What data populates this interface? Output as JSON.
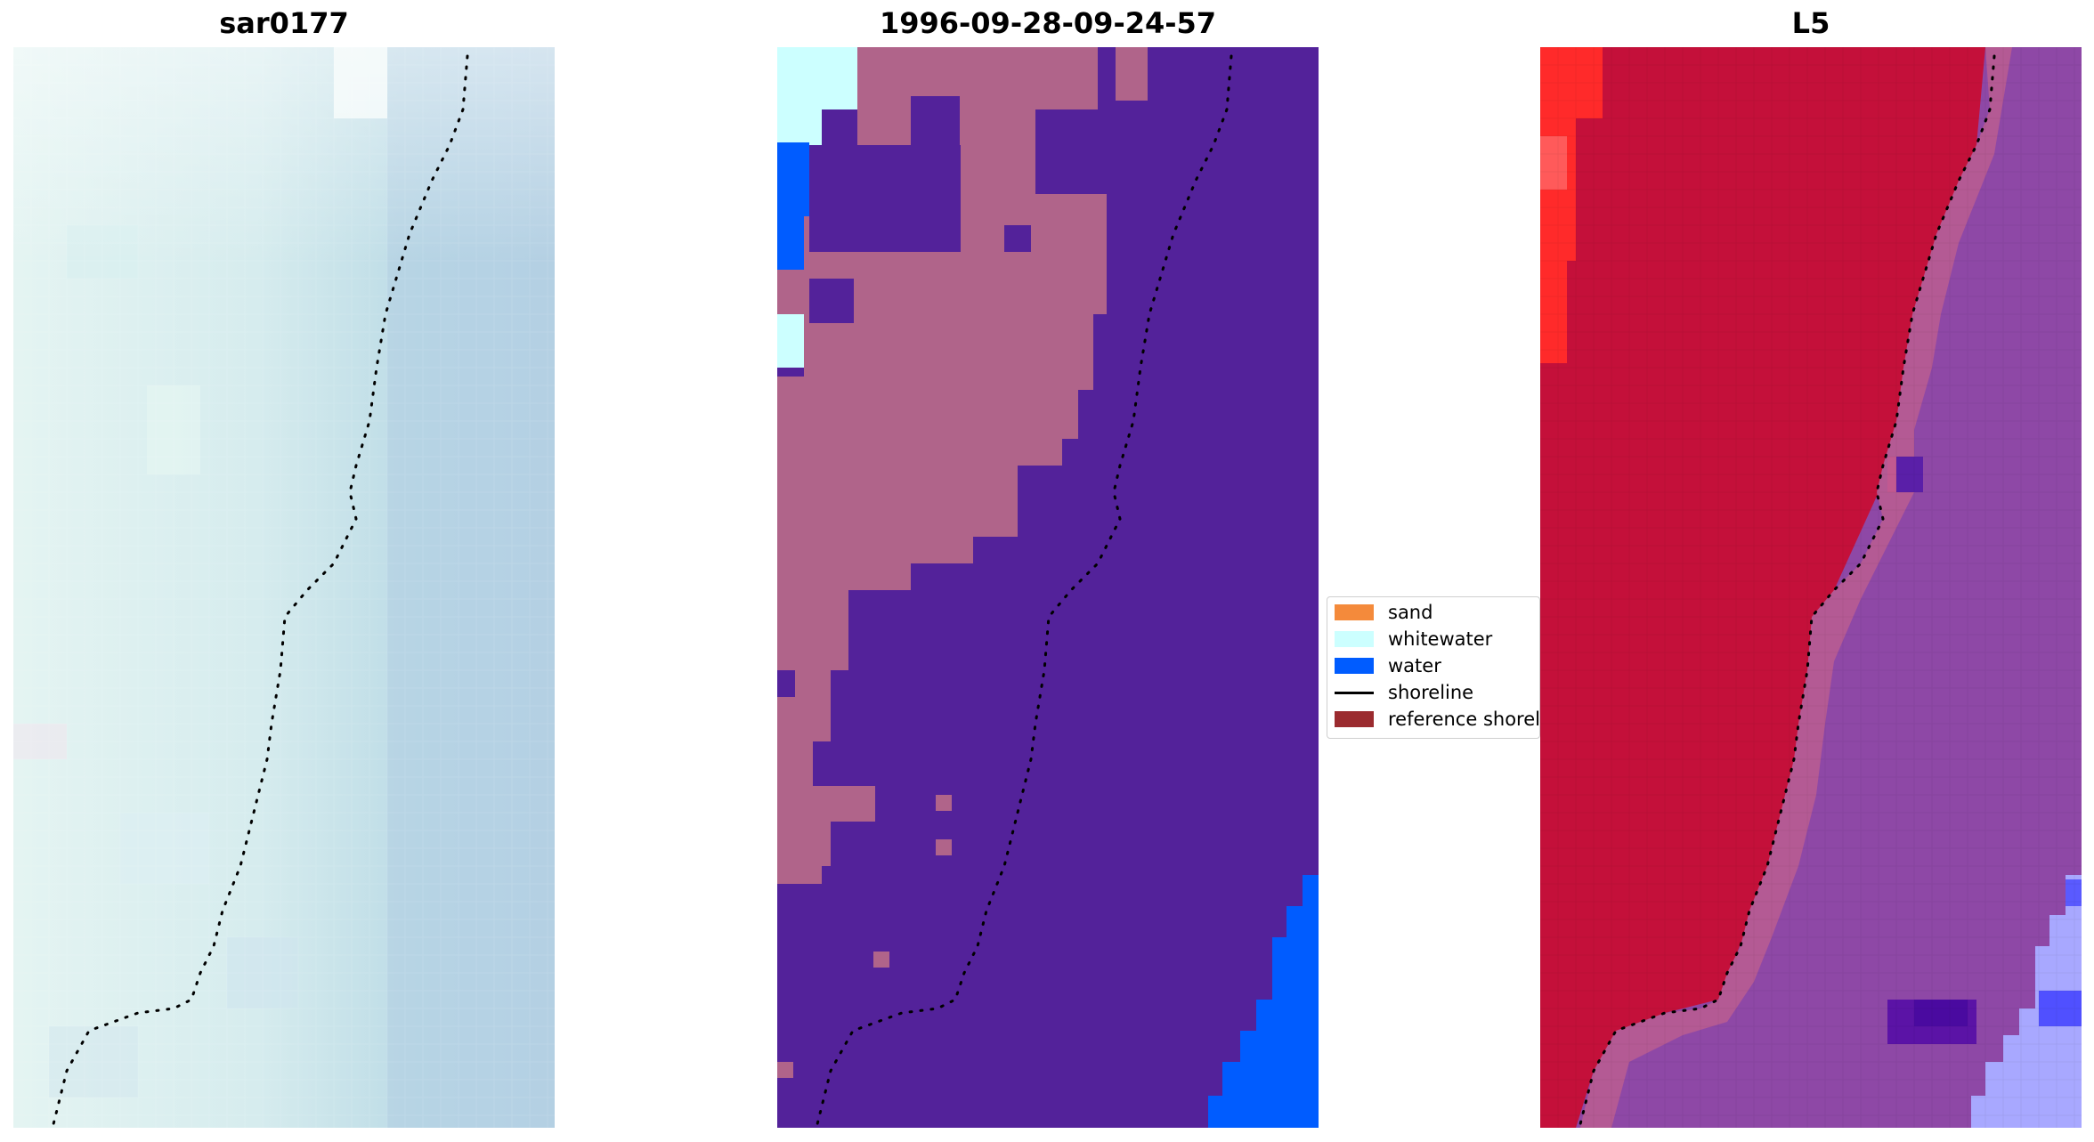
{
  "panels": {
    "left": {
      "title": "sar0177"
    },
    "middle": {
      "title": "1996-09-28-09-24-57"
    },
    "right": {
      "title": "L5"
    }
  },
  "legend": {
    "items": [
      {
        "label": "sand",
        "kind": "patch",
        "color": "#f48a3b"
      },
      {
        "label": "whitewater",
        "kind": "patch",
        "color": "#ccffff"
      },
      {
        "label": "water",
        "kind": "patch",
        "color": "#005cff"
      },
      {
        "label": "shoreline",
        "kind": "line",
        "color": "#000000"
      },
      {
        "label": "reference shoreline",
        "kind": "patch",
        "color": "#9b2b2f"
      }
    ]
  },
  "colors": {
    "land_class": "#b0648a",
    "sea_class": "#53229a",
    "water_class": "#005cff",
    "whitewater_class": "#ccffff",
    "swir_land": "#c4103a",
    "swir_sea": "#8e48a6",
    "sar_tint": "#cfe6ee",
    "shoreline_dots": "#000000"
  }
}
